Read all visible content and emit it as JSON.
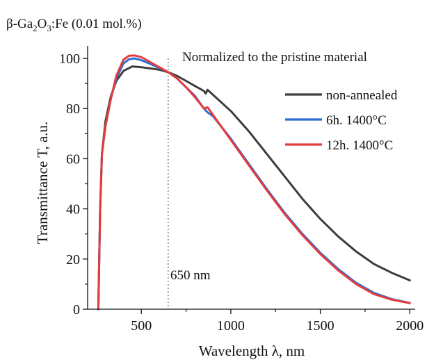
{
  "chart_data": {
    "type": "line",
    "title_main": "β-Ga",
    "title_sub1": "2",
    "title_mid": "O",
    "title_sub2": "3",
    "title_tail": ":Fe (0.01 mol.%)",
    "annotation": "Normalized to the pristine material",
    "marker_label": "650 nm",
    "marker_x": 650,
    "xlabel": "Wavelength λ, nm",
    "ylabel": "Transmittance T, a.u.",
    "xlim": [
      200,
      2030
    ],
    "ylim": [
      0,
      105
    ],
    "xticks": [
      500,
      1000,
      1500,
      2000
    ],
    "yticks": [
      0,
      20,
      40,
      60,
      80,
      100
    ],
    "legend_position": "right",
    "series": [
      {
        "name": "non-annealed",
        "color": "#3d3d3d",
        "x": [
          260,
          270,
          280,
          300,
          330,
          360,
          400,
          450,
          500,
          550,
          600,
          650,
          700,
          750,
          800,
          850,
          860,
          870,
          900,
          1000,
          1100,
          1200,
          1300,
          1400,
          1500,
          1600,
          1700,
          1800,
          1900,
          2000
        ],
        "y": [
          0,
          40,
          62,
          75,
          85,
          91,
          95,
          96.8,
          96.5,
          96,
          95.5,
          94.5,
          93,
          91,
          89,
          87,
          86,
          87.5,
          85.5,
          79,
          71,
          62,
          53,
          44,
          36,
          29,
          23,
          18,
          14.5,
          11.5
        ]
      },
      {
        "name": "6h. 1400°C",
        "color": "#2b6fd6",
        "x": [
          260,
          270,
          280,
          300,
          330,
          360,
          400,
          430,
          460,
          500,
          550,
          600,
          650,
          700,
          750,
          800,
          850,
          870,
          900,
          1000,
          1100,
          1200,
          1300,
          1400,
          1500,
          1600,
          1700,
          1800,
          1900,
          2000
        ],
        "y": [
          0,
          40,
          62,
          73,
          84,
          92,
          98,
          99.6,
          100,
          99.3,
          97.8,
          96.2,
          94.5,
          92,
          88.5,
          85,
          80,
          78.5,
          77,
          68,
          58,
          48,
          38.5,
          30,
          22.5,
          16,
          10.5,
          6.5,
          4,
          2.5
        ]
      },
      {
        "name": "12h. 1400°C",
        "color": "#e43b3b",
        "x": [
          260,
          270,
          280,
          300,
          330,
          360,
          400,
          430,
          460,
          500,
          550,
          600,
          650,
          700,
          750,
          800,
          850,
          870,
          900,
          1000,
          1100,
          1200,
          1300,
          1400,
          1500,
          1600,
          1700,
          1800,
          1900,
          2000
        ],
        "y": [
          0,
          40,
          62,
          73,
          84,
          93,
          99.5,
          101,
          101.2,
          100.5,
          98.5,
          96.5,
          94.5,
          92,
          88.5,
          84.5,
          80,
          80.5,
          77.5,
          67.5,
          57.5,
          47.5,
          38,
          29.5,
          22,
          15.5,
          10,
          6,
          3.8,
          2.4
        ]
      }
    ]
  }
}
